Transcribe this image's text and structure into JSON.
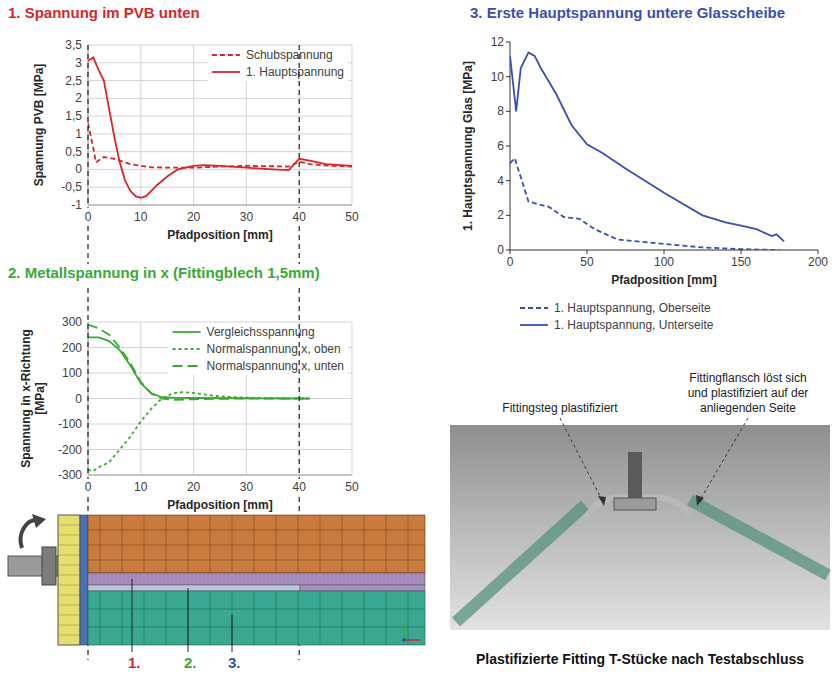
{
  "chart_data": [
    {
      "type": "line",
      "title": "1. Spannung im PVB unten",
      "color": "#d9262a",
      "x_label": "Pfadposition [mm]",
      "y_label": "Spannung PVB [MPa]",
      "xlim": [
        0,
        50
      ],
      "ylim": [
        -1,
        3.5
      ],
      "xticks": [
        0,
        10,
        20,
        30,
        40,
        50
      ],
      "yticks": [
        -1,
        {
          "value": -0.5,
          "label": "-0,5"
        },
        0,
        {
          "value": 0.5,
          "label": "0,5"
        },
        1,
        {
          "value": 1.5,
          "label": "1,5"
        },
        2,
        {
          "value": 2.5,
          "label": "2,5"
        },
        3,
        {
          "value": 3.5,
          "label": "3,5"
        }
      ],
      "grid": true,
      "legend": "upper right",
      "vlines": [
        0,
        40
      ],
      "series": [
        {
          "name": "Schubspannung",
          "color": "#d9262a",
          "line_style": "dashed",
          "x": [
            0,
            1,
            1.5,
            3,
            5,
            8,
            12,
            16,
            20,
            25,
            30,
            35,
            38,
            40,
            42,
            46,
            50
          ],
          "values": [
            1.3,
            0.6,
            0.2,
            0.35,
            0.3,
            0.15,
            0.06,
            0.05,
            0.05,
            0.08,
            0.1,
            0.09,
            0.08,
            0.22,
            0.15,
            0.1,
            0.08
          ]
        },
        {
          "name": "1. Hauptspannung",
          "color": "#d9262a",
          "line_style": "solid",
          "x": [
            0,
            1,
            2,
            3,
            4,
            5,
            6,
            7,
            8,
            9,
            10,
            11,
            12,
            13,
            15,
            17,
            20,
            22,
            25,
            30,
            35,
            38,
            40,
            42,
            45,
            50
          ],
          "values": [
            3.05,
            3.15,
            2.8,
            2.5,
            1.7,
            0.9,
            0.2,
            -0.3,
            -0.6,
            -0.75,
            -0.8,
            -0.75,
            -0.6,
            -0.45,
            -0.2,
            0,
            0.1,
            0.12,
            0.1,
            0.05,
            0,
            -0.02,
            0.3,
            0.25,
            0.15,
            0.1
          ]
        }
      ]
    },
    {
      "type": "line",
      "title": "2. Metallspannung in x (Fittingblech 1,5mm)",
      "color": "#3aa935",
      "x_label": "Pfadposition [mm]",
      "y_label": "Spannung in x-Richtung [MPa]",
      "xlim": [
        0,
        50
      ],
      "ylim": [
        -300,
        300
      ],
      "xticks": [
        0,
        10,
        20,
        30,
        40,
        50
      ],
      "yticks": [
        -300,
        -200,
        -100,
        0,
        100,
        200,
        300
      ],
      "grid": true,
      "legend": "upper right",
      "series": [
        {
          "name": "Vergleichsspannung",
          "color": "#3aa935",
          "line_style": "solid",
          "x": [
            0,
            2,
            4,
            6,
            8,
            10,
            12,
            14,
            16,
            20,
            30,
            40,
            42
          ],
          "values": [
            240,
            240,
            225,
            190,
            130,
            60,
            20,
            5,
            3,
            2,
            1,
            0,
            0
          ]
        },
        {
          "name": "Normalspannung x, oben",
          "color": "#3aa935",
          "line_style": "short_dashed",
          "x": [
            0,
            1,
            2,
            4,
            6,
            8,
            10,
            12,
            14,
            16,
            18,
            20,
            24,
            30,
            40,
            42
          ],
          "values": [
            -280,
            -285,
            -270,
            -250,
            -200,
            -150,
            -90,
            -40,
            0,
            20,
            25,
            22,
            10,
            3,
            0,
            0
          ]
        },
        {
          "name": "Normalspannung x, unten",
          "color": "#3aa935",
          "line_style": "long_dashed",
          "x": [
            0,
            2,
            4,
            6,
            8,
            10,
            12,
            14,
            16,
            20,
            30,
            40,
            42
          ],
          "values": [
            290,
            275,
            250,
            200,
            140,
            65,
            20,
            0,
            -5,
            -3,
            0,
            0,
            0
          ]
        }
      ]
    },
    {
      "type": "line",
      "title": "3. Erste Hauptspannung untere Glasscheibe",
      "color": "#3b4fb0",
      "x_label": "Pfadposition [mm]",
      "y_label": "1. Hauptspannung Glas [MPa]",
      "xlim": [
        0,
        200
      ],
      "ylim": [
        0,
        12
      ],
      "xticks": [
        0,
        50,
        100,
        150,
        200
      ],
      "yticks": [
        0,
        2,
        4,
        6,
        8,
        10,
        12
      ],
      "grid": false,
      "legend": "below",
      "series": [
        {
          "name": "1. Hauptspannung, Oberseite",
          "color": "#3b4fb0",
          "line_style": "dashed",
          "x": [
            0,
            3,
            7,
            12,
            20,
            25,
            35,
            45,
            55,
            70,
            100,
            125,
            150,
            175
          ],
          "values": [
            5,
            5.3,
            4.2,
            2.8,
            2.6,
            2.5,
            1.9,
            1.8,
            1.2,
            0.6,
            0.35,
            0.15,
            0.05,
            0
          ]
        },
        {
          "name": "1. Hauptspannung, Unterseite",
          "color": "#3b4fb0",
          "line_style": "solid",
          "x": [
            0,
            4,
            7,
            12,
            16,
            20,
            30,
            40,
            50,
            60,
            75,
            100,
            125,
            140,
            150,
            160,
            170,
            173,
            178
          ],
          "values": [
            11.2,
            8,
            10.5,
            11.4,
            11.2,
            10.5,
            9,
            7.2,
            6.1,
            5.6,
            4.7,
            3.3,
            2,
            1.6,
            1.4,
            1.2,
            0.8,
            0.9,
            0.5
          ]
        }
      ]
    }
  ],
  "figure": {
    "diagram": {
      "labels": [
        {
          "text": "1.",
          "color": "#d9262a"
        },
        {
          "text": "2.",
          "color": "#3aa935"
        },
        {
          "text": "3.",
          "color": "#3b4fb0"
        }
      ]
    },
    "photo": {
      "annotations": [
        {
          "lines": [
            "Fittingsteg plastifiziert"
          ]
        },
        {
          "lines": [
            "Fittingflansch löst sich",
            "und plastifiziert auf der",
            "anliegenden Seite"
          ]
        }
      ],
      "caption": "Plastifizierte Fitting T-Stücke nach Testabschluss"
    }
  }
}
